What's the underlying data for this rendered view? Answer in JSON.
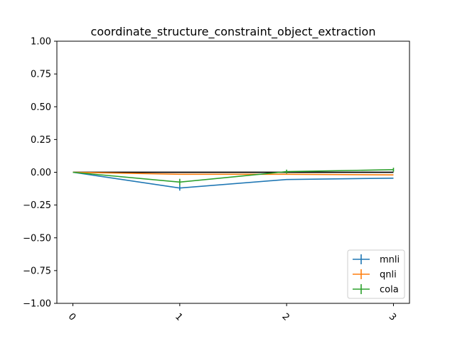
{
  "chart_data": {
    "type": "line",
    "title": "coordinate_structure_constraint_object_extraction",
    "xlabel": "",
    "ylabel": "",
    "x": [
      0,
      1,
      2,
      3
    ],
    "x_tick_labels": [
      "0",
      "1",
      "2",
      "3"
    ],
    "y_tick_labels": [
      "1.00",
      "0.75",
      "0.50",
      "0.25",
      "0.00",
      "−0.25",
      "−0.50",
      "−0.75",
      "−1.00"
    ],
    "y_ticks": [
      1.0,
      0.75,
      0.5,
      0.25,
      0.0,
      -0.25,
      -0.5,
      -0.75,
      -1.0
    ],
    "xlim": [
      -0.15,
      3.15
    ],
    "ylim": [
      -1.0,
      1.0
    ],
    "grid": false,
    "legend_position": "lower-right",
    "baseline": {
      "y": 0.0,
      "color": "#000000"
    },
    "series": [
      {
        "name": "mnli",
        "color": "#1f77b4",
        "values": [
          0.0,
          -0.12,
          -0.055,
          -0.045
        ],
        "errors": [
          0.0,
          0.02,
          0.0,
          0.0
        ]
      },
      {
        "name": "qnli",
        "color": "#ff7f0e",
        "values": [
          0.0,
          -0.015,
          -0.015,
          -0.02
        ],
        "errors": [
          0.0,
          0.0,
          0.0,
          0.0
        ]
      },
      {
        "name": "cola",
        "color": "#2ca02c",
        "values": [
          0.0,
          -0.075,
          0.005,
          0.02
        ],
        "errors": [
          0.0,
          0.025,
          0.015,
          0.015
        ]
      }
    ]
  }
}
